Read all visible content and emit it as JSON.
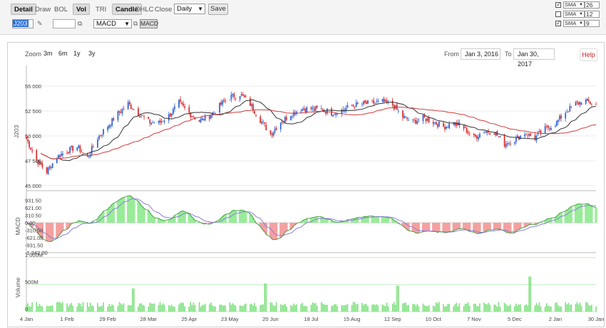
{
  "toolbar": {
    "buttons": [
      "Detail",
      "Draw",
      "BOL",
      "Vol",
      "TRI",
      "Candle",
      "OHLC",
      "Close"
    ],
    "interval": "Daily",
    "save_label": "Save",
    "symbol": "J203",
    "indicator": "MACD",
    "indicator_button": "MACD",
    "sma": [
      {
        "checked": true,
        "type": "SMA",
        "period": "26"
      },
      {
        "checked": false,
        "type": "SMA",
        "period": "12"
      },
      {
        "checked": true,
        "type": "SMA",
        "period": "9"
      }
    ]
  },
  "controls": {
    "zoom_label": "Zoom",
    "zoom_options": [
      "3m",
      "6m",
      "1y",
      "3y"
    ],
    "from_label": "From",
    "from_date": "Jan 3, 2016",
    "to_label": "To",
    "to_date": "Jan 30, 2017",
    "help_label": "Help"
  },
  "chart_data": {
    "type": "candlestick",
    "symbol_label": "J203",
    "price_ylim": [
      44500,
      56500
    ],
    "price_ticks": [
      "55 000",
      "52 500",
      "50 000",
      "47 500",
      "45 000"
    ],
    "price_tick_values": [
      55000,
      52500,
      50000,
      47500,
      45000
    ],
    "x_tick_labels": [
      "4 Jan",
      "1 Feb",
      "29 Feb",
      "28 Mar",
      "25 Apr",
      "23 May",
      "20 Jun",
      "18 Jul",
      "15 Aug",
      "12 Sep",
      "10 Oct",
      "7 Nov",
      "5 Dec",
      "2 Jan",
      "30 Jan"
    ],
    "close_path": [
      [
        "2016-01-04",
        49700
      ],
      [
        "2016-01-11",
        47600
      ],
      [
        "2016-01-18",
        46400
      ],
      [
        "2016-01-25",
        47900
      ],
      [
        "2016-02-01",
        48500
      ],
      [
        "2016-02-08",
        48900
      ],
      [
        "2016-02-15",
        47800
      ],
      [
        "2016-02-22",
        49800
      ],
      [
        "2016-02-29",
        51000
      ],
      [
        "2016-03-07",
        52200
      ],
      [
        "2016-03-14",
        53200
      ],
      [
        "2016-03-21",
        52300
      ],
      [
        "2016-03-28",
        51400
      ],
      [
        "2016-04-04",
        51300
      ],
      [
        "2016-04-11",
        52000
      ],
      [
        "2016-04-18",
        53300
      ],
      [
        "2016-04-25",
        52300
      ],
      [
        "2016-05-02",
        51500
      ],
      [
        "2016-05-09",
        52000
      ],
      [
        "2016-05-16",
        53000
      ],
      [
        "2016-05-23",
        53900
      ],
      [
        "2016-05-30",
        54200
      ],
      [
        "2016-06-06",
        53200
      ],
      [
        "2016-06-13",
        51600
      ],
      [
        "2016-06-20",
        50200
      ],
      [
        "2016-06-27",
        51400
      ],
      [
        "2016-07-04",
        52200
      ],
      [
        "2016-07-11",
        52700
      ],
      [
        "2016-07-18",
        52700
      ],
      [
        "2016-07-25",
        52700
      ],
      [
        "2016-08-01",
        52300
      ],
      [
        "2016-08-08",
        52600
      ],
      [
        "2016-08-15",
        53000
      ],
      [
        "2016-08-22",
        53200
      ],
      [
        "2016-08-29",
        53300
      ],
      [
        "2016-09-05",
        53400
      ],
      [
        "2016-09-12",
        53100
      ],
      [
        "2016-09-19",
        51900
      ],
      [
        "2016-09-26",
        51400
      ],
      [
        "2016-10-03",
        51800
      ],
      [
        "2016-10-10",
        51400
      ],
      [
        "2016-10-17",
        50900
      ],
      [
        "2016-10-24",
        51300
      ],
      [
        "2016-10-31",
        50800
      ],
      [
        "2016-11-07",
        49800
      ],
      [
        "2016-11-14",
        50500
      ],
      [
        "2016-11-21",
        50400
      ],
      [
        "2016-11-28",
        49200
      ],
      [
        "2016-12-05",
        49600
      ],
      [
        "2016-12-12",
        50300
      ],
      [
        "2016-12-19",
        49800
      ],
      [
        "2016-12-26",
        50700
      ],
      [
        "2017-01-02",
        51200
      ],
      [
        "2017-01-09",
        52400
      ],
      [
        "2017-01-16",
        53200
      ],
      [
        "2017-01-23",
        53500
      ],
      [
        "2017-01-30",
        53100
      ]
    ],
    "sma_series": [
      {
        "period": "9",
        "color": "#333333"
      },
      {
        "period": "26",
        "color": "#d23a3a"
      }
    ],
    "macd_label": "MACD",
    "macd_ticks": [
      "931.50",
      "621.00",
      "310.50",
      "0.00",
      "-310.50",
      "-621.00",
      "-931.50",
      "-1 242.00"
    ],
    "macd_tick_values": [
      931.5,
      621,
      310.5,
      0,
      -310.5,
      -621,
      -931.5,
      -1242
    ],
    "macd_ylim": [
      -1242,
      1040
    ],
    "volume_label": "Volume",
    "volume_ticks": [
      "1 000M",
      "500M",
      "0"
    ],
    "volume_tick_values": [
      1000,
      500,
      0
    ],
    "volume_ylim": [
      0,
      1000
    ],
    "volume_spikes": [
      [
        "2016-03-18",
        430
      ],
      [
        "2016-06-17",
        520
      ],
      [
        "2016-09-16",
        480
      ],
      [
        "2016-12-16",
        650
      ]
    ],
    "colors": {
      "up": "#2f5fd4",
      "down": "#d92b2b",
      "sma9": "#333333",
      "sma26": "#d23a3a",
      "macd_pos": "#98ec98",
      "macd_neg": "#f4a0a0",
      "signal": "#8a7fd6",
      "volume": "#7be07b"
    }
  }
}
